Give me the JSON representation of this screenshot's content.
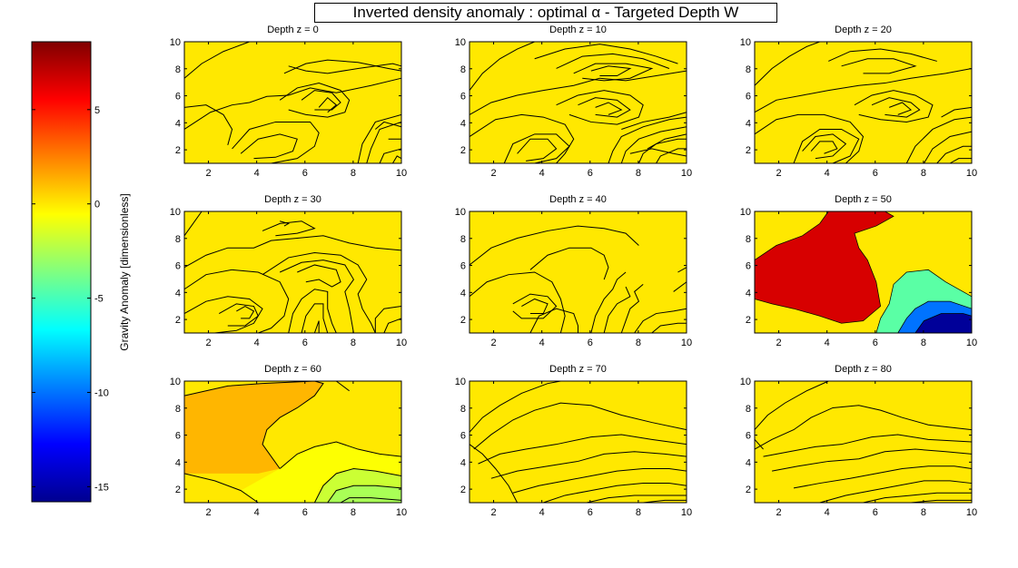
{
  "figure": {
    "title": "Inverted density anomaly : optimal α - Targeted Depth W"
  },
  "colorbar": {
    "label": "Gravity Anomaly [dimensionless]",
    "ticks": [
      "5",
      "0",
      "-5",
      "-10",
      "-15"
    ],
    "tick_values": [
      5,
      0,
      -5,
      -10,
      -15
    ],
    "range": [
      -15.8,
      8.6
    ],
    "colormap": "jet"
  },
  "chart_data": [
    {
      "type": "contour",
      "title": "Depth z = 0",
      "xlim": [
        1,
        10
      ],
      "ylim": [
        1,
        10
      ],
      "xticks": [
        "2",
        "4",
        "6",
        "8",
        "10"
      ],
      "yticks": [
        "2",
        "4",
        "6",
        "8",
        "10"
      ],
      "fill_value": 0,
      "grid": false
    },
    {
      "type": "contour",
      "title": "Depth z = 10",
      "xlim": [
        1,
        10
      ],
      "ylim": [
        1,
        10
      ],
      "xticks": [
        "2",
        "4",
        "6",
        "8",
        "10"
      ],
      "yticks": [
        "2",
        "4",
        "6",
        "8",
        "10"
      ],
      "fill_value": 0,
      "grid": false
    },
    {
      "type": "contour",
      "title": "Depth z = 20",
      "xlim": [
        1,
        10
      ],
      "ylim": [
        1,
        10
      ],
      "xticks": [
        "2",
        "4",
        "6",
        "8",
        "10"
      ],
      "yticks": [
        "2",
        "4",
        "6",
        "8",
        "10"
      ],
      "fill_value": 0,
      "grid": false
    },
    {
      "type": "contour",
      "title": "Depth z = 30",
      "xlim": [
        1,
        10
      ],
      "ylim": [
        1,
        10
      ],
      "xticks": [
        "2",
        "4",
        "6",
        "8",
        "10"
      ],
      "yticks": [
        "2",
        "4",
        "6",
        "8",
        "10"
      ],
      "fill_value": 0,
      "grid": false
    },
    {
      "type": "contour",
      "title": "Depth z = 40",
      "xlim": [
        1,
        10
      ],
      "ylim": [
        1,
        10
      ],
      "xticks": [
        "2",
        "4",
        "6",
        "8",
        "10"
      ],
      "yticks": [
        "2",
        "4",
        "6",
        "8",
        "10"
      ],
      "fill_value": 0,
      "grid": false
    },
    {
      "type": "contour",
      "title": "Depth z = 50",
      "xlim": [
        1,
        10
      ],
      "ylim": [
        1,
        10
      ],
      "xticks": [
        "2",
        "4",
        "6",
        "8",
        "10"
      ],
      "yticks": [
        "2",
        "4",
        "6",
        "8",
        "10"
      ],
      "fill_value": 0,
      "grid": false
    },
    {
      "type": "contour",
      "title": "Depth z = 60",
      "xlim": [
        1,
        10
      ],
      "ylim": [
        1,
        10
      ],
      "xticks": [
        "2",
        "4",
        "6",
        "8",
        "10"
      ],
      "yticks": [
        "2",
        "4",
        "6",
        "8",
        "10"
      ],
      "fill_value": 0,
      "grid": false
    },
    {
      "type": "contour",
      "title": "Depth z = 70",
      "xlim": [
        1,
        10
      ],
      "ylim": [
        1,
        10
      ],
      "xticks": [
        "2",
        "4",
        "6",
        "8",
        "10"
      ],
      "yticks": [
        "2",
        "4",
        "6",
        "8",
        "10"
      ],
      "fill_value": 0,
      "grid": false
    },
    {
      "type": "contour",
      "title": "Depth z = 80",
      "xlim": [
        1,
        10
      ],
      "ylim": [
        1,
        10
      ],
      "xticks": [
        "2",
        "4",
        "6",
        "8",
        "10"
      ],
      "yticks": [
        "2",
        "4",
        "6",
        "8",
        "10"
      ],
      "fill_value": 0,
      "grid": false
    }
  ]
}
